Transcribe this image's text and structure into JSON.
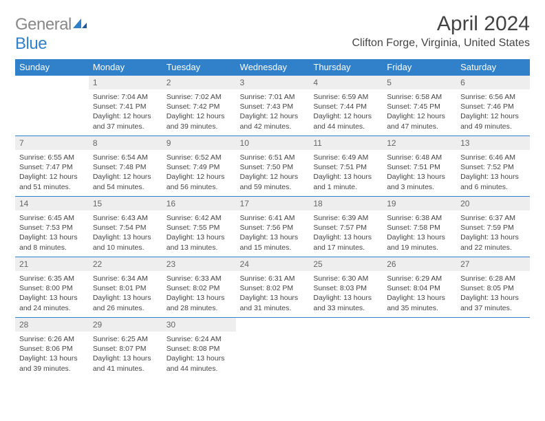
{
  "logo": {
    "word1": "General",
    "word2": "Blue"
  },
  "month_title": "April 2024",
  "location": "Clifton Forge, Virginia, United States",
  "header_bg": "#3081c9",
  "day_header_bg": "#eeeeee",
  "border_color": "#3081c9",
  "day_names": [
    "Sunday",
    "Monday",
    "Tuesday",
    "Wednesday",
    "Thursday",
    "Friday",
    "Saturday"
  ],
  "weeks": [
    [
      {
        "empty": true
      },
      {
        "n": "1",
        "sunrise": "7:04 AM",
        "sunset": "7:41 PM",
        "daylight": "12 hours and 37 minutes."
      },
      {
        "n": "2",
        "sunrise": "7:02 AM",
        "sunset": "7:42 PM",
        "daylight": "12 hours and 39 minutes."
      },
      {
        "n": "3",
        "sunrise": "7:01 AM",
        "sunset": "7:43 PM",
        "daylight": "12 hours and 42 minutes."
      },
      {
        "n": "4",
        "sunrise": "6:59 AM",
        "sunset": "7:44 PM",
        "daylight": "12 hours and 44 minutes."
      },
      {
        "n": "5",
        "sunrise": "6:58 AM",
        "sunset": "7:45 PM",
        "daylight": "12 hours and 47 minutes."
      },
      {
        "n": "6",
        "sunrise": "6:56 AM",
        "sunset": "7:46 PM",
        "daylight": "12 hours and 49 minutes."
      }
    ],
    [
      {
        "n": "7",
        "sunrise": "6:55 AM",
        "sunset": "7:47 PM",
        "daylight": "12 hours and 51 minutes."
      },
      {
        "n": "8",
        "sunrise": "6:54 AM",
        "sunset": "7:48 PM",
        "daylight": "12 hours and 54 minutes."
      },
      {
        "n": "9",
        "sunrise": "6:52 AM",
        "sunset": "7:49 PM",
        "daylight": "12 hours and 56 minutes."
      },
      {
        "n": "10",
        "sunrise": "6:51 AM",
        "sunset": "7:50 PM",
        "daylight": "12 hours and 59 minutes."
      },
      {
        "n": "11",
        "sunrise": "6:49 AM",
        "sunset": "7:51 PM",
        "daylight": "13 hours and 1 minute."
      },
      {
        "n": "12",
        "sunrise": "6:48 AM",
        "sunset": "7:51 PM",
        "daylight": "13 hours and 3 minutes."
      },
      {
        "n": "13",
        "sunrise": "6:46 AM",
        "sunset": "7:52 PM",
        "daylight": "13 hours and 6 minutes."
      }
    ],
    [
      {
        "n": "14",
        "sunrise": "6:45 AM",
        "sunset": "7:53 PM",
        "daylight": "13 hours and 8 minutes."
      },
      {
        "n": "15",
        "sunrise": "6:43 AM",
        "sunset": "7:54 PM",
        "daylight": "13 hours and 10 minutes."
      },
      {
        "n": "16",
        "sunrise": "6:42 AM",
        "sunset": "7:55 PM",
        "daylight": "13 hours and 13 minutes."
      },
      {
        "n": "17",
        "sunrise": "6:41 AM",
        "sunset": "7:56 PM",
        "daylight": "13 hours and 15 minutes."
      },
      {
        "n": "18",
        "sunrise": "6:39 AM",
        "sunset": "7:57 PM",
        "daylight": "13 hours and 17 minutes."
      },
      {
        "n": "19",
        "sunrise": "6:38 AM",
        "sunset": "7:58 PM",
        "daylight": "13 hours and 19 minutes."
      },
      {
        "n": "20",
        "sunrise": "6:37 AM",
        "sunset": "7:59 PM",
        "daylight": "13 hours and 22 minutes."
      }
    ],
    [
      {
        "n": "21",
        "sunrise": "6:35 AM",
        "sunset": "8:00 PM",
        "daylight": "13 hours and 24 minutes."
      },
      {
        "n": "22",
        "sunrise": "6:34 AM",
        "sunset": "8:01 PM",
        "daylight": "13 hours and 26 minutes."
      },
      {
        "n": "23",
        "sunrise": "6:33 AM",
        "sunset": "8:02 PM",
        "daylight": "13 hours and 28 minutes."
      },
      {
        "n": "24",
        "sunrise": "6:31 AM",
        "sunset": "8:02 PM",
        "daylight": "13 hours and 31 minutes."
      },
      {
        "n": "25",
        "sunrise": "6:30 AM",
        "sunset": "8:03 PM",
        "daylight": "13 hours and 33 minutes."
      },
      {
        "n": "26",
        "sunrise": "6:29 AM",
        "sunset": "8:04 PM",
        "daylight": "13 hours and 35 minutes."
      },
      {
        "n": "27",
        "sunrise": "6:28 AM",
        "sunset": "8:05 PM",
        "daylight": "13 hours and 37 minutes."
      }
    ],
    [
      {
        "n": "28",
        "sunrise": "6:26 AM",
        "sunset": "8:06 PM",
        "daylight": "13 hours and 39 minutes."
      },
      {
        "n": "29",
        "sunrise": "6:25 AM",
        "sunset": "8:07 PM",
        "daylight": "13 hours and 41 minutes."
      },
      {
        "n": "30",
        "sunrise": "6:24 AM",
        "sunset": "8:08 PM",
        "daylight": "13 hours and 44 minutes."
      },
      {
        "empty": true
      },
      {
        "empty": true
      },
      {
        "empty": true
      },
      {
        "empty": true
      }
    ]
  ]
}
